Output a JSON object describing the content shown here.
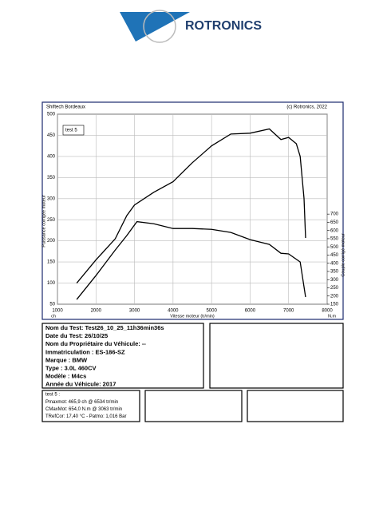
{
  "logo": {
    "text": "ROTRONICS"
  },
  "header": {
    "left": "Shiftech Bordeaux",
    "right": "(c) Rotronics, 2022"
  },
  "chart_data": {
    "type": "line",
    "x_label": "Vitesse moteur (tr/min)",
    "y_label": "Puissance corrigée moteur",
    "y2_label": "Couple corrigé moteur",
    "y_unit": "ch",
    "y2_unit": "N.m",
    "xlim": [
      1000,
      8000
    ],
    "xticks": [
      1000,
      2000,
      3000,
      4000,
      5000,
      6000,
      7000,
      8000
    ],
    "ylim": [
      50,
      500
    ],
    "yticks": [
      50,
      100,
      150,
      200,
      250,
      300,
      350,
      400,
      450,
      500
    ],
    "y2lim": [
      150,
      1310
    ],
    "y2ticks": [
      150,
      200,
      250,
      300,
      350,
      400,
      450,
      500,
      550,
      600,
      650,
      700
    ],
    "grid": true,
    "legend": "top-left",
    "series": [
      {
        "name": "test 5",
        "color": "#000000",
        "x": [
          1500,
          2000,
          2500,
          2800,
          3000,
          3500,
          4000,
          4500,
          5000,
          5500,
          6000,
          6500,
          6800,
          7000,
          7200,
          7300,
          7400,
          7440
        ],
        "values": [
          100,
          155,
          205,
          260,
          285,
          315,
          340,
          385,
          425,
          453,
          455,
          465,
          440,
          445,
          430,
          400,
          300,
          207
        ]
      },
      {
        "name": "test 5",
        "color": "#000000",
        "axis": "y2",
        "x": [
          1500,
          2000,
          2500,
          2800,
          3063,
          3500,
          4000,
          4500,
          5000,
          5500,
          6000,
          6500,
          6800,
          7000,
          7300,
          7440
        ],
        "values": [
          179,
          325,
          481,
          569,
          654,
          641,
          612,
          612,
          607,
          588,
          544,
          515,
          461,
          457,
          408,
          194
        ]
      }
    ]
  },
  "info": {
    "lines": [
      "Nom du Test: Test26_10_25_11h36min36s",
      "Date du Test: 26/10/25",
      "Nom du Propriétaire du Véhicule: --",
      "Immatriculation : ES-186-SZ",
      "Marque : BMW",
      "Type : 3.0L 460CV",
      "Modèle : M4cs",
      "Année du Véhicule: 2017"
    ]
  },
  "results": {
    "lines": [
      "test 5 :",
      "Pmaxmot: 465,9 ch @ 6534 tr/min",
      "CMaxMot: 654,0 N.m @ 3063 tr/min",
      "TRefCor: 17,40 °C - Patmo: 1,016 Bar"
    ]
  }
}
